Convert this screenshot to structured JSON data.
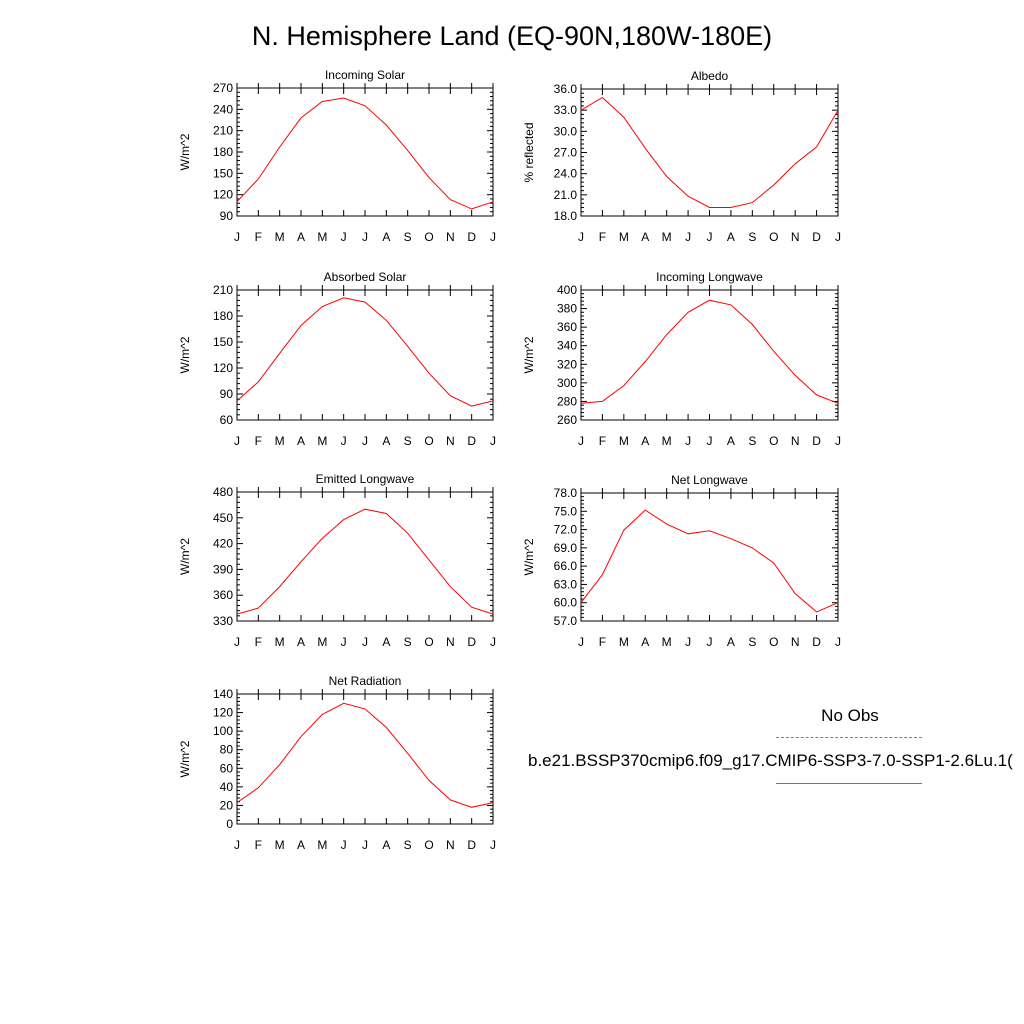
{
  "page": {
    "title": "N. Hemisphere Land (EQ-90N,180W-180E)"
  },
  "legend": {
    "obs_label": "No Obs",
    "obs_color": "#6b6bff",
    "run_label": "b.e21.BSSP370cmip6.f09_g17.CMIP6-SSP3-7.0-SSP1-2.6Lu.1(",
    "run_color": "#ff0000"
  },
  "chart_data": [
    {
      "type": "line",
      "title": "Incoming Solar",
      "ylabel": "W/m^2",
      "categories": [
        "J",
        "F",
        "M",
        "A",
        "M",
        "J",
        "J",
        "A",
        "S",
        "O",
        "N",
        "D",
        "J"
      ],
      "ylim": [
        90,
        270
      ],
      "yticks": [
        "90",
        "120",
        "150",
        "180",
        "210",
        "240",
        "270"
      ],
      "series": [
        {
          "values": [
            110,
            142,
            187,
            228,
            251,
            256,
            245,
            218,
            182,
            144,
            113,
            100,
            110
          ]
        }
      ]
    },
    {
      "type": "line",
      "title": "Albedo",
      "ylabel": "% reflected",
      "categories": [
        "J",
        "F",
        "M",
        "A",
        "M",
        "J",
        "J",
        "A",
        "S",
        "O",
        "N",
        "D",
        "J"
      ],
      "ylim": [
        18,
        36
      ],
      "yticks": [
        "18.0",
        "21.0",
        "24.0",
        "27.0",
        "30.0",
        "33.0",
        "36.0"
      ],
      "series": [
        {
          "values": [
            33.0,
            34.8,
            32.0,
            27.6,
            23.6,
            20.8,
            19.2,
            19.2,
            19.9,
            22.4,
            25.4,
            27.8,
            33.0
          ]
        }
      ]
    },
    {
      "type": "line",
      "title": "Absorbed Solar",
      "ylabel": "W/m^2",
      "categories": [
        "J",
        "F",
        "M",
        "A",
        "M",
        "J",
        "J",
        "A",
        "S",
        "O",
        "N",
        "D",
        "J"
      ],
      "ylim": [
        60,
        210
      ],
      "yticks": [
        "60",
        "90",
        "120",
        "150",
        "180",
        "210"
      ],
      "series": [
        {
          "values": [
            82,
            104,
            137,
            169,
            191,
            201,
            196,
            175,
            145,
            114,
            88,
            76,
            82
          ]
        }
      ]
    },
    {
      "type": "line",
      "title": "Incoming Longwave",
      "ylabel": "W/m^2",
      "categories": [
        "J",
        "F",
        "M",
        "A",
        "M",
        "J",
        "J",
        "A",
        "S",
        "O",
        "N",
        "D",
        "J"
      ],
      "ylim": [
        260,
        400
      ],
      "yticks": [
        "260",
        "280",
        "300",
        "320",
        "340",
        "360",
        "380",
        "400"
      ],
      "series": [
        {
          "values": [
            278,
            280,
            297,
            323,
            352,
            376,
            389,
            384,
            363,
            334,
            308,
            287,
            278
          ]
        }
      ]
    },
    {
      "type": "line",
      "title": "Emitted Longwave",
      "ylabel": "W/m^2",
      "categories": [
        "J",
        "F",
        "M",
        "A",
        "M",
        "J",
        "J",
        "A",
        "S",
        "O",
        "N",
        "D",
        "J"
      ],
      "ylim": [
        330,
        480
      ],
      "yticks": [
        "330",
        "360",
        "390",
        "420",
        "450",
        "480"
      ],
      "series": [
        {
          "values": [
            338,
            345,
            370,
            399,
            426,
            448,
            460,
            455,
            432,
            401,
            370,
            346,
            338
          ]
        }
      ]
    },
    {
      "type": "line",
      "title": "Net Longwave",
      "ylabel": "W/m^2",
      "categories": [
        "J",
        "F",
        "M",
        "A",
        "M",
        "J",
        "J",
        "A",
        "S",
        "O",
        "N",
        "D",
        "J"
      ],
      "ylim": [
        57,
        78
      ],
      "yticks": [
        "57.0",
        "60.0",
        "63.0",
        "66.0",
        "69.0",
        "72.0",
        "75.0",
        "78.0"
      ],
      "series": [
        {
          "values": [
            60.0,
            64.6,
            71.9,
            75.2,
            72.9,
            71.3,
            71.8,
            70.5,
            69.0,
            66.5,
            61.5,
            58.5,
            60.0
          ]
        }
      ]
    },
    {
      "type": "line",
      "title": "Net Radiation",
      "ylabel": "W/m^2",
      "categories": [
        "J",
        "F",
        "M",
        "A",
        "M",
        "J",
        "J",
        "A",
        "S",
        "O",
        "N",
        "D",
        "J"
      ],
      "ylim": [
        0,
        140
      ],
      "yticks": [
        "0",
        "20",
        "40",
        "60",
        "80",
        "100",
        "120",
        "140"
      ],
      "series": [
        {
          "values": [
            23,
            39,
            64,
            94,
            118,
            130,
            124,
            104,
            76,
            47,
            26,
            18,
            23
          ]
        }
      ]
    }
  ]
}
